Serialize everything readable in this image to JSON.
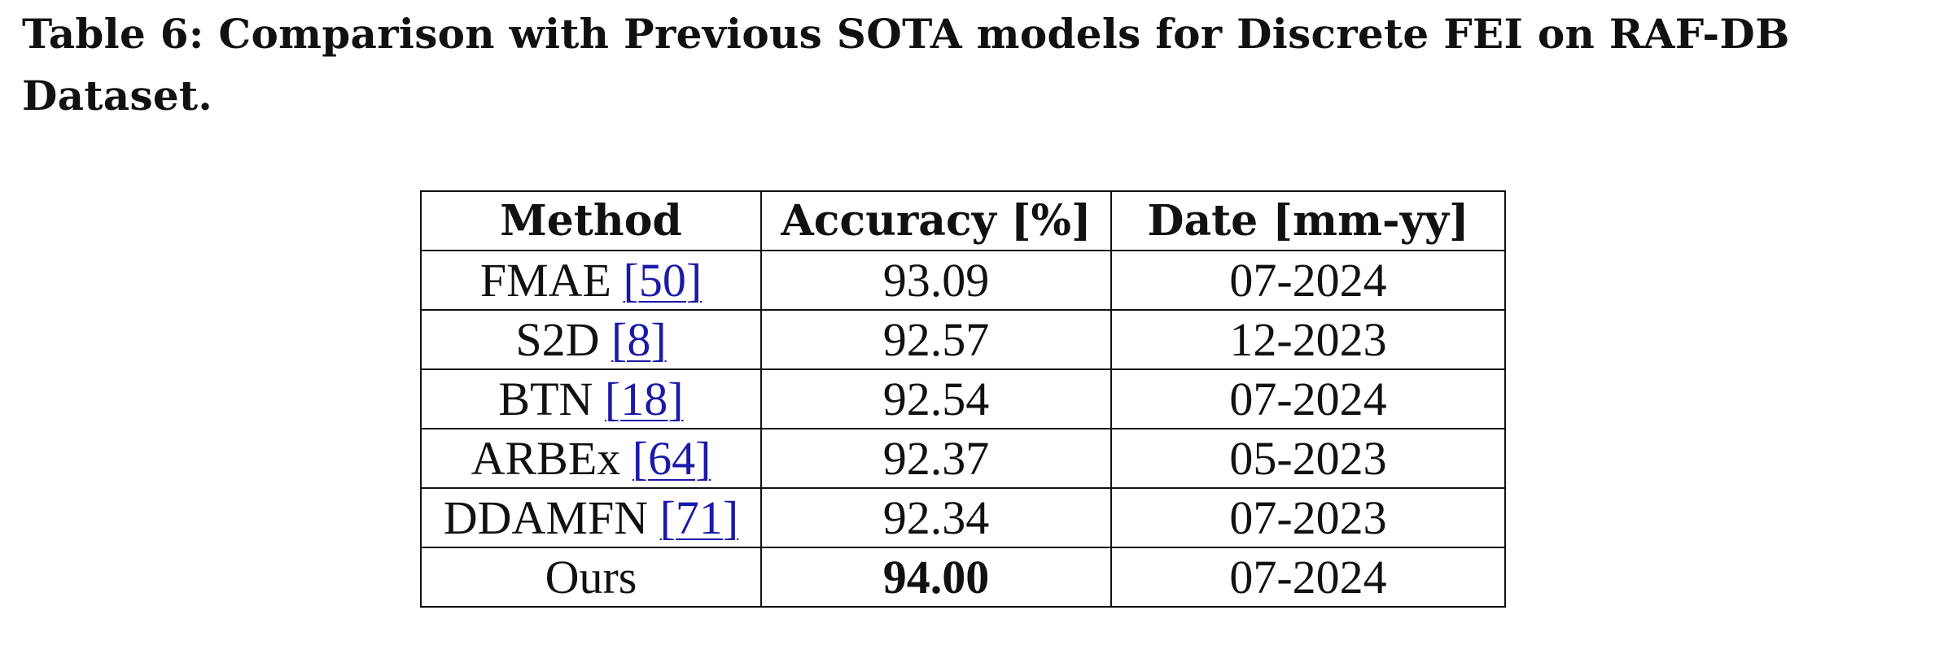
{
  "caption": "Table 6: Comparison with Previous SOTA models for Discrete FEI on RAF-DB Dataset.",
  "table": {
    "headers": [
      "Method",
      "Accuracy [%]",
      "Date [mm-yy]"
    ],
    "rows": [
      {
        "method": "FMAE",
        "ref": "[50]",
        "accuracy": "93.09",
        "date": "07-2024"
      },
      {
        "method": "S2D",
        "ref": "[8]",
        "accuracy": "92.57",
        "date": "12-2023"
      },
      {
        "method": "BTN",
        "ref": "[18]",
        "accuracy": "92.54",
        "date": "07-2024"
      },
      {
        "method": "ARBEx",
        "ref": "[64]",
        "accuracy": "92.37",
        "date": "05-2023"
      },
      {
        "method": "DDAMFN",
        "ref": "[71]",
        "accuracy": "92.34",
        "date": "07-2023"
      },
      {
        "method": "Ours",
        "ref": "",
        "accuracy": "94.00",
        "date": "07-2024",
        "accuracy_bold": true
      }
    ]
  },
  "colors": {
    "text": "#111111",
    "citation_link": "#1a1aa8",
    "background": "#ffffff"
  }
}
